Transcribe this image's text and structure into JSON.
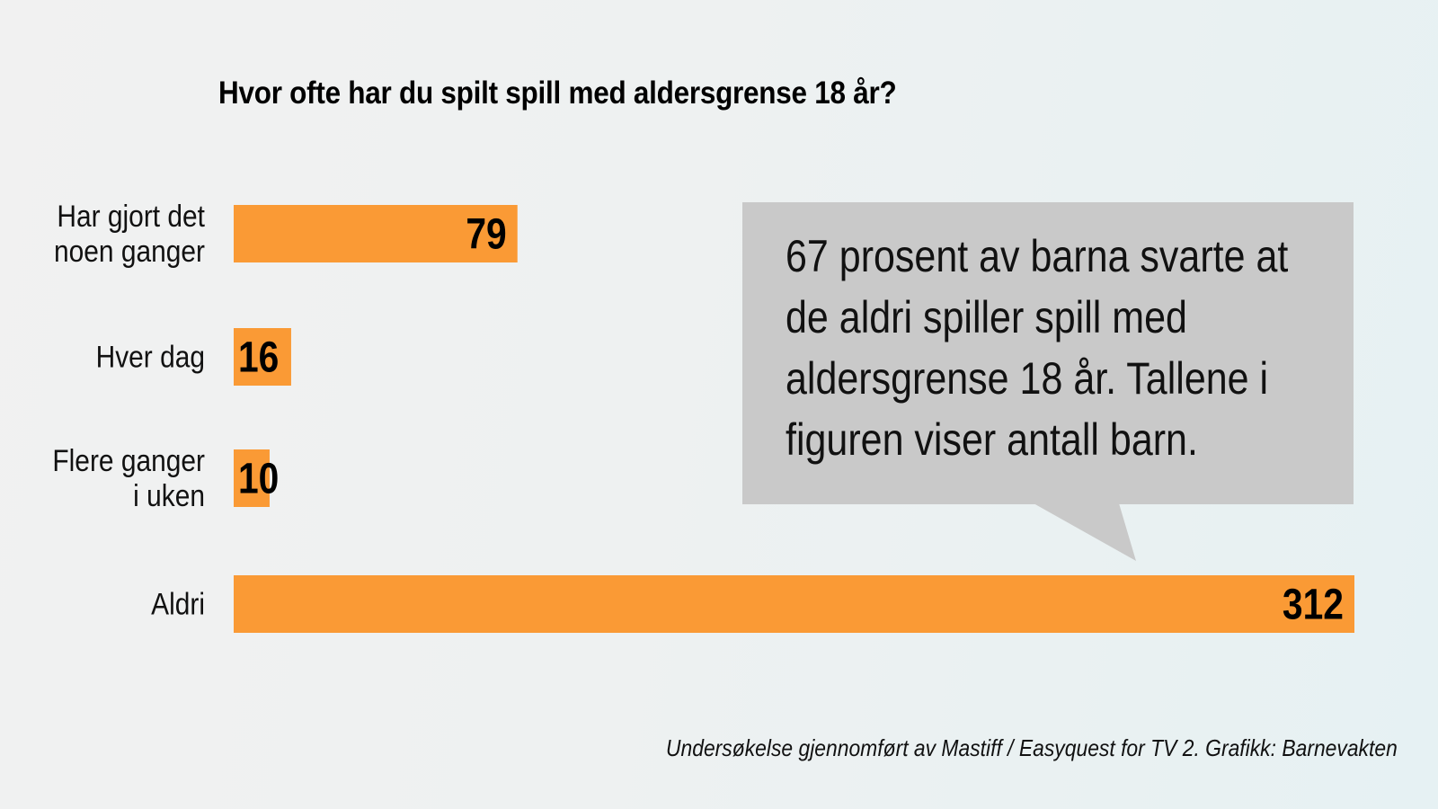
{
  "chart_data": {
    "type": "bar",
    "orientation": "horizontal",
    "title": "Hvor ofte har du spilt spill med aldersgrense 18 år?",
    "categories": [
      [
        "Har gjort det",
        "noen ganger"
      ],
      [
        "Hver dag"
      ],
      [
        "Flere ganger",
        "i uken"
      ],
      [
        "Aldri"
      ]
    ],
    "values": [
      79,
      16,
      10,
      312
    ],
    "value_labels": [
      "79",
      "16",
      "10",
      "312"
    ],
    "xlim": [
      0,
      312
    ],
    "grid": false,
    "legend": "none",
    "bar_color": "#fa9a35"
  },
  "callout": {
    "text": "67 prosent av barna svarte at de aldri spiller spill med aldersgrense 18 år. Tallene i figuren viser antall barn.",
    "background": "#c9c9c9"
  },
  "footer": {
    "note": "Undersøkelse gjennomført av Mastiff / Easyquest for TV 2. Grafikk: Barnevakten"
  },
  "colors": {
    "bar": "#fa9a35",
    "callout": "#c9c9c9",
    "text": "#111111"
  }
}
